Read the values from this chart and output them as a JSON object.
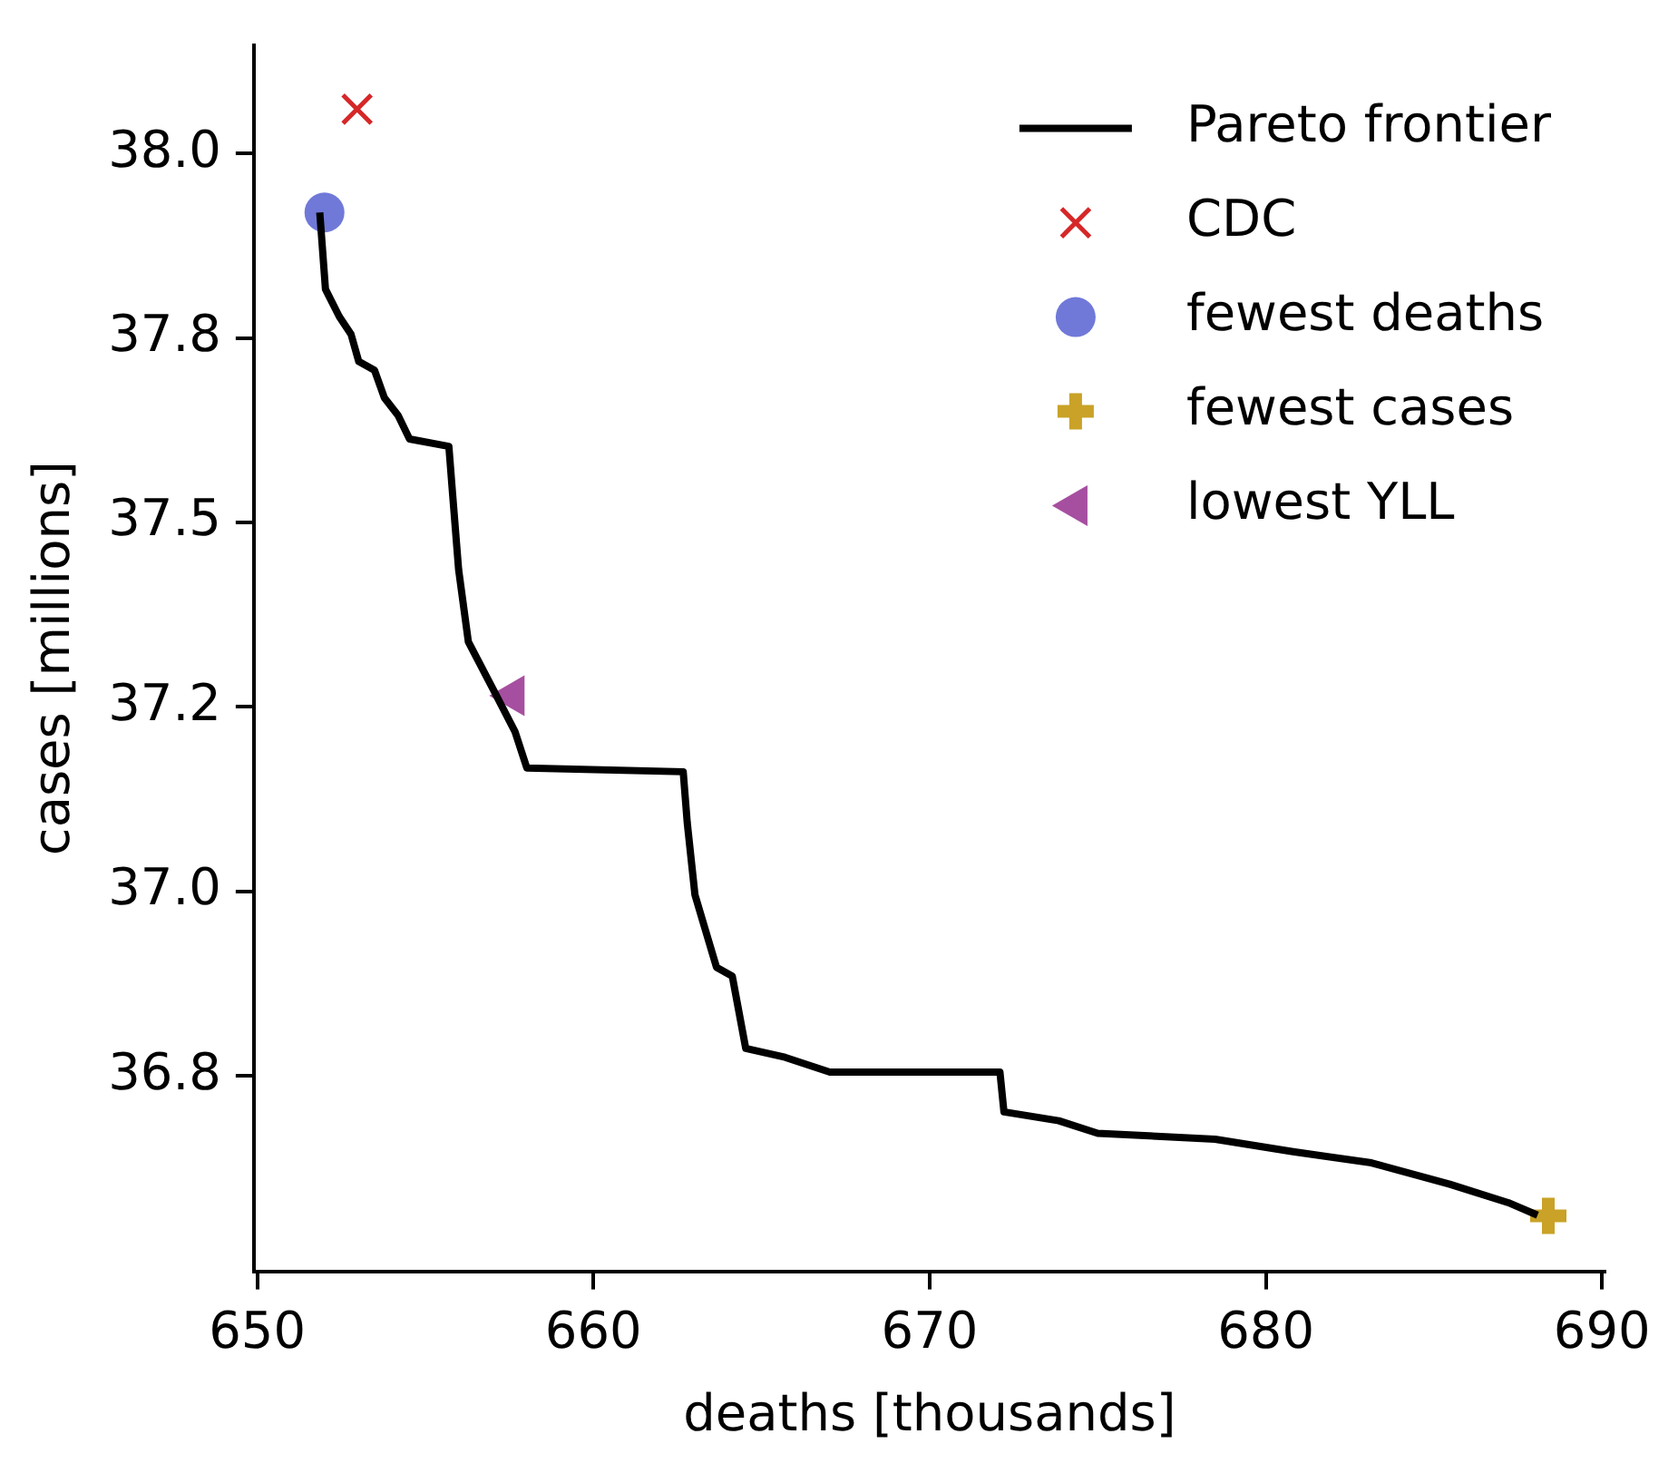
{
  "chart_data": {
    "type": "line",
    "xlabel": "deaths [thousands]",
    "ylabel": "cases [millions]",
    "xlim": [
      649.9,
      690.1
    ],
    "ylim": [
      36.485,
      38.147
    ],
    "xticks": [
      650,
      660,
      670,
      680,
      690
    ],
    "yticks": [
      {
        "value": 36.75,
        "label": "36.8"
      },
      {
        "value": 37.0,
        "label": "37.0"
      },
      {
        "value": 37.25,
        "label": "37.2"
      },
      {
        "value": 37.5,
        "label": "37.5"
      },
      {
        "value": 37.75,
        "label": "37.8"
      },
      {
        "value": 38.0,
        "label": "38.0"
      }
    ],
    "legend": "top right",
    "grid": false,
    "series": [
      {
        "name": "Pareto frontier",
        "type": "line",
        "color": "#000000",
        "marker": "none",
        "line_style": "solid",
        "x": [
          651.86,
          652.03,
          652.44,
          652.79,
          653.02,
          653.49,
          653.78,
          654.19,
          654.53,
          655.7,
          655.81,
          655.99,
          656.28,
          656.98,
          657.67,
          658.02,
          662.67,
          662.79,
          663.02,
          663.66,
          664.13,
          664.53,
          665.7,
          667.03,
          672.09,
          672.21,
          673.84,
          675.0,
          678.49,
          680.81,
          683.14,
          685.47,
          687.21,
          688.08
        ],
        "values": [
          37.92,
          37.816,
          37.779,
          37.755,
          37.718,
          37.706,
          37.669,
          37.645,
          37.613,
          37.603,
          37.539,
          37.436,
          37.338,
          37.277,
          37.216,
          37.167,
          37.162,
          37.093,
          36.995,
          36.897,
          36.885,
          36.787,
          36.775,
          36.755,
          36.755,
          36.701,
          36.689,
          36.672,
          36.664,
          36.647,
          36.632,
          36.603,
          36.578,
          36.561
        ]
      },
      {
        "name": "CDC",
        "type": "scatter",
        "color": "#d62728",
        "marker": "x",
        "x": [
          652.97
        ],
        "values": [
          38.06
        ]
      },
      {
        "name": "fewest deaths",
        "type": "scatter",
        "color": "#7079d8",
        "marker": "circle",
        "x": [
          652.0
        ],
        "values": [
          37.92
        ]
      },
      {
        "name": "fewest cases",
        "type": "scatter",
        "color": "#c9a227",
        "marker": "cross",
        "x": [
          688.4
        ],
        "values": [
          36.56
        ]
      },
      {
        "name": "lowest YLL",
        "type": "scatter",
        "color": "#a64fa0",
        "marker": "triangle",
        "x": [
          657.6
        ],
        "values": [
          37.265
        ]
      }
    ]
  }
}
